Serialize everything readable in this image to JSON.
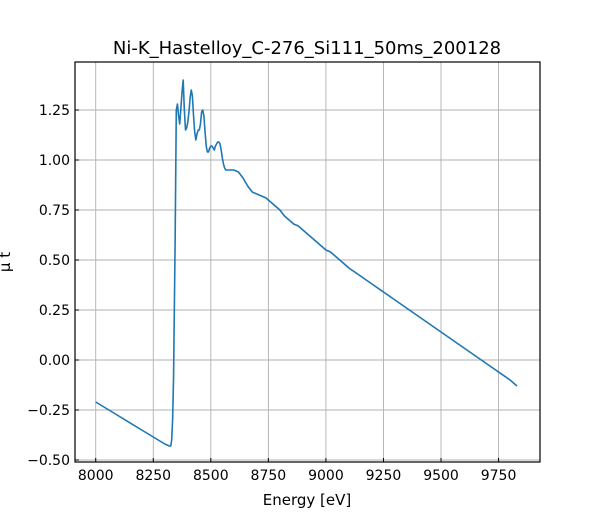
{
  "chart_data": {
    "type": "line",
    "title": "Ni-K_Hastelloy_C-276_Si111_50ms_200128",
    "xlabel": "Energy [eV]",
    "ylabel": "μ t",
    "xlim": [
      7910,
      9930
    ],
    "ylim": [
      -0.51,
      1.49
    ],
    "xticks": [
      8000,
      8250,
      8500,
      8750,
      9000,
      9250,
      9500,
      9750
    ],
    "xtick_labels": [
      "8000",
      "8250",
      "8500",
      "8750",
      "9000",
      "9250",
      "9500",
      "9750"
    ],
    "yticks": [
      -0.5,
      -0.25,
      0.0,
      0.25,
      0.5,
      0.75,
      1.0,
      1.25
    ],
    "ytick_labels": [
      "−0.50",
      "−0.25",
      "0.00",
      "0.25",
      "0.50",
      "0.75",
      "1.00",
      "1.25"
    ],
    "grid": true,
    "series": [
      {
        "color": "#1f77b4",
        "x": [
          8000,
          8100,
          8200,
          8300,
          8320,
          8326,
          8330,
          8334,
          8338,
          8342,
          8345,
          8350,
          8355,
          8360,
          8365,
          8370,
          8375,
          8380,
          8385,
          8390,
          8395,
          8400,
          8405,
          8410,
          8415,
          8420,
          8425,
          8430,
          8435,
          8440,
          8445,
          8450,
          8455,
          8460,
          8465,
          8470,
          8475,
          8480,
          8485,
          8490,
          8495,
          8500,
          8505,
          8510,
          8515,
          8520,
          8525,
          8530,
          8535,
          8540,
          8545,
          8550,
          8555,
          8560,
          8565,
          8570,
          8575,
          8580,
          8590,
          8600,
          8620,
          8640,
          8660,
          8680,
          8700,
          8720,
          8740,
          8760,
          8780,
          8800,
          8820,
          8840,
          8860,
          8880,
          8900,
          8920,
          8940,
          8960,
          8980,
          9000,
          9020,
          9040,
          9060,
          9080,
          9100,
          9200,
          9300,
          9400,
          9500,
          9600,
          9700,
          9800,
          9830
        ],
        "y": [
          -0.21,
          -0.28,
          -0.35,
          -0.42,
          -0.43,
          -0.43,
          -0.4,
          -0.3,
          -0.1,
          0.3,
          0.6,
          1.25,
          1.28,
          1.22,
          1.18,
          1.26,
          1.34,
          1.4,
          1.25,
          1.15,
          1.16,
          1.19,
          1.24,
          1.31,
          1.35,
          1.32,
          1.22,
          1.14,
          1.1,
          1.13,
          1.15,
          1.15,
          1.18,
          1.24,
          1.25,
          1.22,
          1.14,
          1.07,
          1.04,
          1.04,
          1.06,
          1.07,
          1.07,
          1.06,
          1.05,
          1.07,
          1.08,
          1.09,
          1.09,
          1.08,
          1.05,
          1.01,
          0.98,
          0.96,
          0.95,
          0.95,
          0.95,
          0.95,
          0.95,
          0.95,
          0.94,
          0.91,
          0.87,
          0.84,
          0.83,
          0.82,
          0.81,
          0.79,
          0.77,
          0.75,
          0.72,
          0.7,
          0.68,
          0.67,
          0.65,
          0.63,
          0.61,
          0.59,
          0.57,
          0.55,
          0.54,
          0.52,
          0.5,
          0.48,
          0.46,
          0.38,
          0.3,
          0.22,
          0.14,
          0.06,
          -0.02,
          -0.1,
          -0.13
        ]
      }
    ]
  }
}
